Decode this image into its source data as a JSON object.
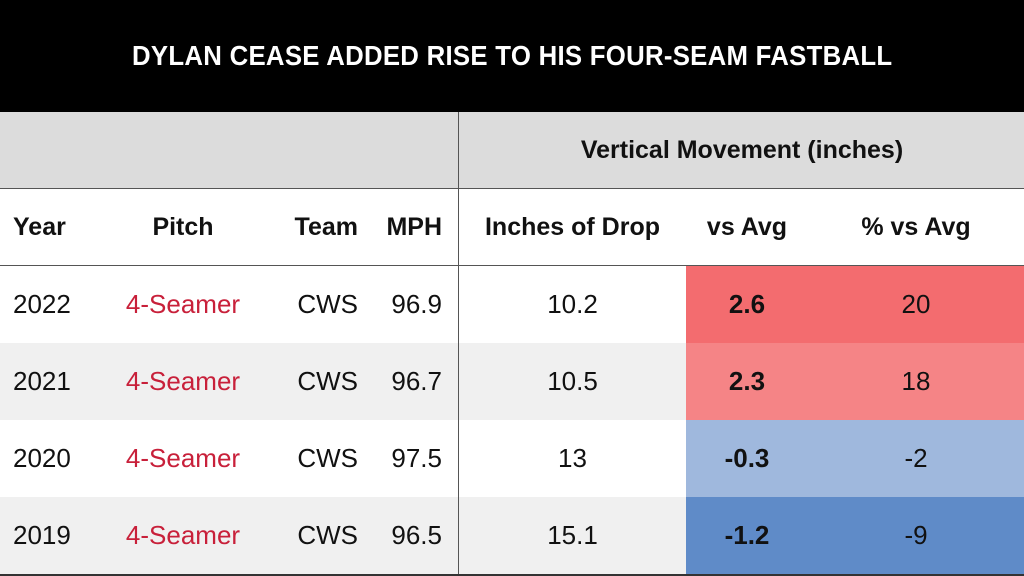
{
  "title": "DYLAN CEASE ADDED RISE TO HIS FOUR-SEAM FASTBALL",
  "group_header": "Vertical Movement (inches)",
  "columns": {
    "year": "Year",
    "pitch": "Pitch",
    "team": "Team",
    "mph": "MPH",
    "drop": "Inches of Drop",
    "vs_avg": "vs Avg",
    "pct_vs_avg": "% vs Avg"
  },
  "rows": [
    {
      "year": "2022",
      "pitch": "4-Seamer",
      "team": "CWS",
      "mph": "96.9",
      "drop": "10.2",
      "vs_avg": "2.6",
      "pct_vs_avg": "20",
      "shade": "#f36c6f"
    },
    {
      "year": "2021",
      "pitch": "4-Seamer",
      "team": "CWS",
      "mph": "96.7",
      "drop": "10.5",
      "vs_avg": "2.3",
      "pct_vs_avg": "18",
      "shade": "#f58486"
    },
    {
      "year": "2020",
      "pitch": "4-Seamer",
      "team": "CWS",
      "mph": "97.5",
      "drop": "13",
      "vs_avg": "-0.3",
      "pct_vs_avg": "-2",
      "shade": "#9fb8dd"
    },
    {
      "year": "2019",
      "pitch": "4-Seamer",
      "team": "CWS",
      "mph": "96.5",
      "drop": "15.1",
      "vs_avg": "-1.2",
      "pct_vs_avg": "-9",
      "shade": "#5f8bc8"
    }
  ],
  "chart_data": {
    "type": "table",
    "title": "DYLAN CEASE ADDED RISE TO HIS FOUR-SEAM FASTBALL",
    "column_group": "Vertical Movement (inches)",
    "headers": [
      "Year",
      "Pitch",
      "Team",
      "MPH",
      "Inches of Drop",
      "vs Avg",
      "% vs Avg"
    ],
    "rows": [
      [
        "2022",
        "4-Seamer",
        "CWS",
        96.9,
        10.2,
        2.6,
        20
      ],
      [
        "2021",
        "4-Seamer",
        "CWS",
        96.7,
        10.5,
        2.3,
        18
      ],
      [
        "2020",
        "4-Seamer",
        "CWS",
        97.5,
        13,
        -0.3,
        -2
      ],
      [
        "2019",
        "4-Seamer",
        "CWS",
        96.5,
        15.1,
        -1.2,
        -9
      ]
    ]
  }
}
